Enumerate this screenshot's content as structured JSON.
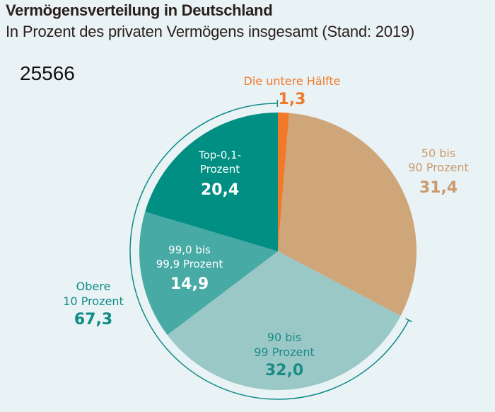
{
  "header": {
    "title": "Vermögensverteilung in Deutschland",
    "subtitle": "In Prozent des privaten Vermögens insgesamt (Stand: 2019)",
    "id_number": "25566"
  },
  "chart_data": {
    "type": "pie",
    "title": "Vermögensverteilung in Deutschland",
    "subtitle": "In Prozent des privaten Vermögens insgesamt (Stand: 2019)",
    "unit": "Prozent",
    "direction": "clockwise from top",
    "slices": [
      {
        "key": "untere-haelfte",
        "label_lines": [
          "Die untere Hälfte"
        ],
        "value": 1.3,
        "value_label": "1,3",
        "color": "#f07a2a",
        "label_color": "#f07a2a",
        "label_position": "outside-top"
      },
      {
        "key": "50-90",
        "label_lines": [
          "50 bis",
          "90 Prozent"
        ],
        "value": 31.4,
        "value_label": "31,4",
        "color": "#cfa57a",
        "label_color": "#c99a6c",
        "label_position": "outside-right"
      },
      {
        "key": "90-99",
        "label_lines": [
          "90 bis",
          "99 Prozent"
        ],
        "value": 32.0,
        "value_label": "32,0",
        "color": "#9ac8c6",
        "label_color": "#1a8c88",
        "label_position": "inside"
      },
      {
        "key": "99-99.9",
        "label_lines": [
          "99,0 bis",
          "99,9 Prozent"
        ],
        "value": 14.9,
        "value_label": "14,9",
        "color": "#48aaa4",
        "label_color": "#ffffff",
        "label_position": "inside"
      },
      {
        "key": "top-0.1",
        "label_lines": [
          "Top-0,1-",
          "Prozent"
        ],
        "value": 20.4,
        "value_label": "20,4",
        "color": "#008f82",
        "label_color": "#ffffff",
        "label_position": "inside"
      }
    ],
    "bracket": {
      "label_lines": [
        "Obere",
        "10 Prozent"
      ],
      "value": 67.3,
      "value_label": "67,3",
      "covers": [
        "90-99",
        "99-99.9",
        "top-0.1"
      ],
      "color": "#0f8c88"
    }
  }
}
